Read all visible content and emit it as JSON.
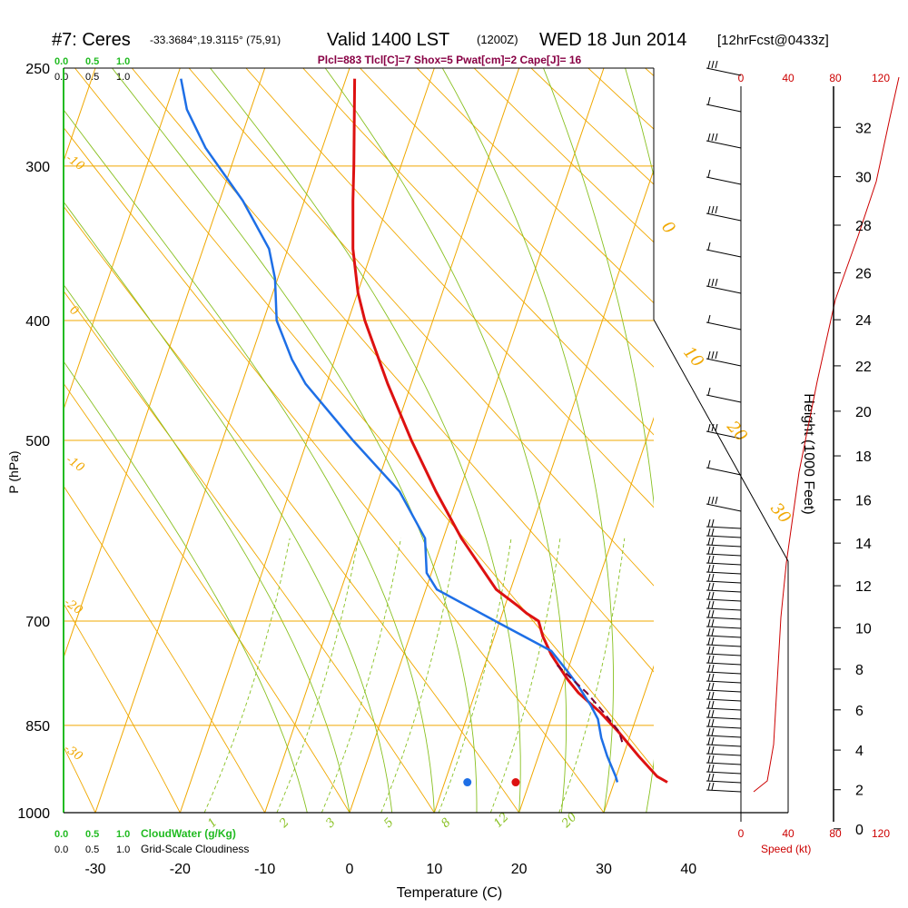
{
  "header": {
    "station": "#7: Ceres",
    "coords": "-33.3684°,19.3115° (75,91)",
    "valid": "Valid 1400 LST",
    "zulu": "(1200Z)",
    "date": "WED 18 Jun 2014",
    "forecast": "[12hrFcst@0433z]",
    "params": "Plcl=883 Tlcl[C]=7 Shox=5 Pwat[cm]=2 Cape[J]= 16"
  },
  "colors": {
    "temperature": "#dd1111",
    "dewpoint": "#1e6fe6",
    "isotherm": "#f0a800",
    "mixing": "#88c020",
    "cloud": "#22bb22",
    "wind_speed": "#cc0000",
    "frame": "#000000"
  },
  "cloud_scale": {
    "top_green": [
      "0.0",
      "0.5",
      "1.0"
    ],
    "top_black": [
      "0.0",
      "0.5",
      "1.0"
    ],
    "bottom_green": [
      "0.0",
      "0.5",
      "1.0"
    ],
    "bottom_green_label": "CloudWater (g/Kg)",
    "bottom_black": [
      "0.0",
      "0.5",
      "1.0"
    ],
    "bottom_black_label": "Grid-Scale Cloudiness"
  },
  "speed_axis": {
    "ticks": [
      "0",
      "40",
      "80",
      "120"
    ],
    "label": "Speed (kt)"
  },
  "chart_data": {
    "type": "line",
    "title": "",
    "xlabel": "Temperature (C)",
    "ylabel": "P (hPa)",
    "y2label": "Height (1000 Feet)",
    "x_ticks": [
      -30,
      -20,
      -10,
      0,
      10,
      20,
      30,
      40
    ],
    "y_ticks": [
      250,
      300,
      400,
      500,
      700,
      850,
      1000
    ],
    "height_ticks": [
      0,
      2,
      4,
      6,
      8,
      10,
      12,
      14,
      16,
      18,
      20,
      22,
      24,
      26,
      28,
      30,
      32
    ],
    "xlim": [
      -33,
      45
    ],
    "ylim": [
      1000,
      250
    ],
    "skew_c_per_hpa": 0.04,
    "grid": true,
    "isotherm_labels": [
      "-10",
      "0",
      "-10",
      "-20",
      "-30",
      "10",
      "20",
      "30",
      "0"
    ],
    "mixing_ratio_labels": [
      "1",
      "2",
      "3",
      "5",
      "8",
      "12",
      "20"
    ],
    "series": [
      {
        "key": "temperature",
        "pressure": [
          255,
          300,
          320,
          350,
          380,
          400,
          450,
          500,
          550,
          600,
          660,
          680,
          690,
          700,
          720,
          745,
          780,
          800,
          830,
          860,
          900,
          935,
          945
        ],
        "values": [
          0.6,
          0.5,
          0.4,
          0.4,
          1.0,
          1.8,
          4.5,
          7.3,
          10.2,
          13.2,
          17.3,
          19.8,
          20.9,
          22.3,
          22.8,
          23.8,
          25.7,
          27.0,
          29.6,
          31.7,
          34.1,
          36.3,
          37.5
        ]
      },
      {
        "key": "dewpoint",
        "pressure": [
          255,
          270,
          290,
          320,
          350,
          370,
          400,
          430,
          450,
          500,
          550,
          600,
          640,
          660,
          700,
          740,
          770,
          790,
          820,
          840,
          870,
          900,
          935,
          945
        ],
        "values": [
          -19.9,
          -19.2,
          -17.0,
          -12.6,
          -9.5,
          -8.8,
          -8.6,
          -6.8,
          -5.2,
          0.4,
          5.9,
          8.9,
          9.1,
          10.3,
          17.2,
          23.8,
          25.8,
          27.0,
          28.5,
          29.3,
          29.7,
          30.4,
          31.4,
          31.6
        ]
      },
      {
        "key": "parcel",
        "pressure": [
          760,
          800,
          830,
          860,
          883
        ],
        "values": [
          24.5,
          28.0,
          30.0,
          31.8,
          32.3
        ]
      }
    ],
    "surface": {
      "pressure": 945,
      "temperature": 17.4,
      "dewpoint": 11.7
    }
  }
}
